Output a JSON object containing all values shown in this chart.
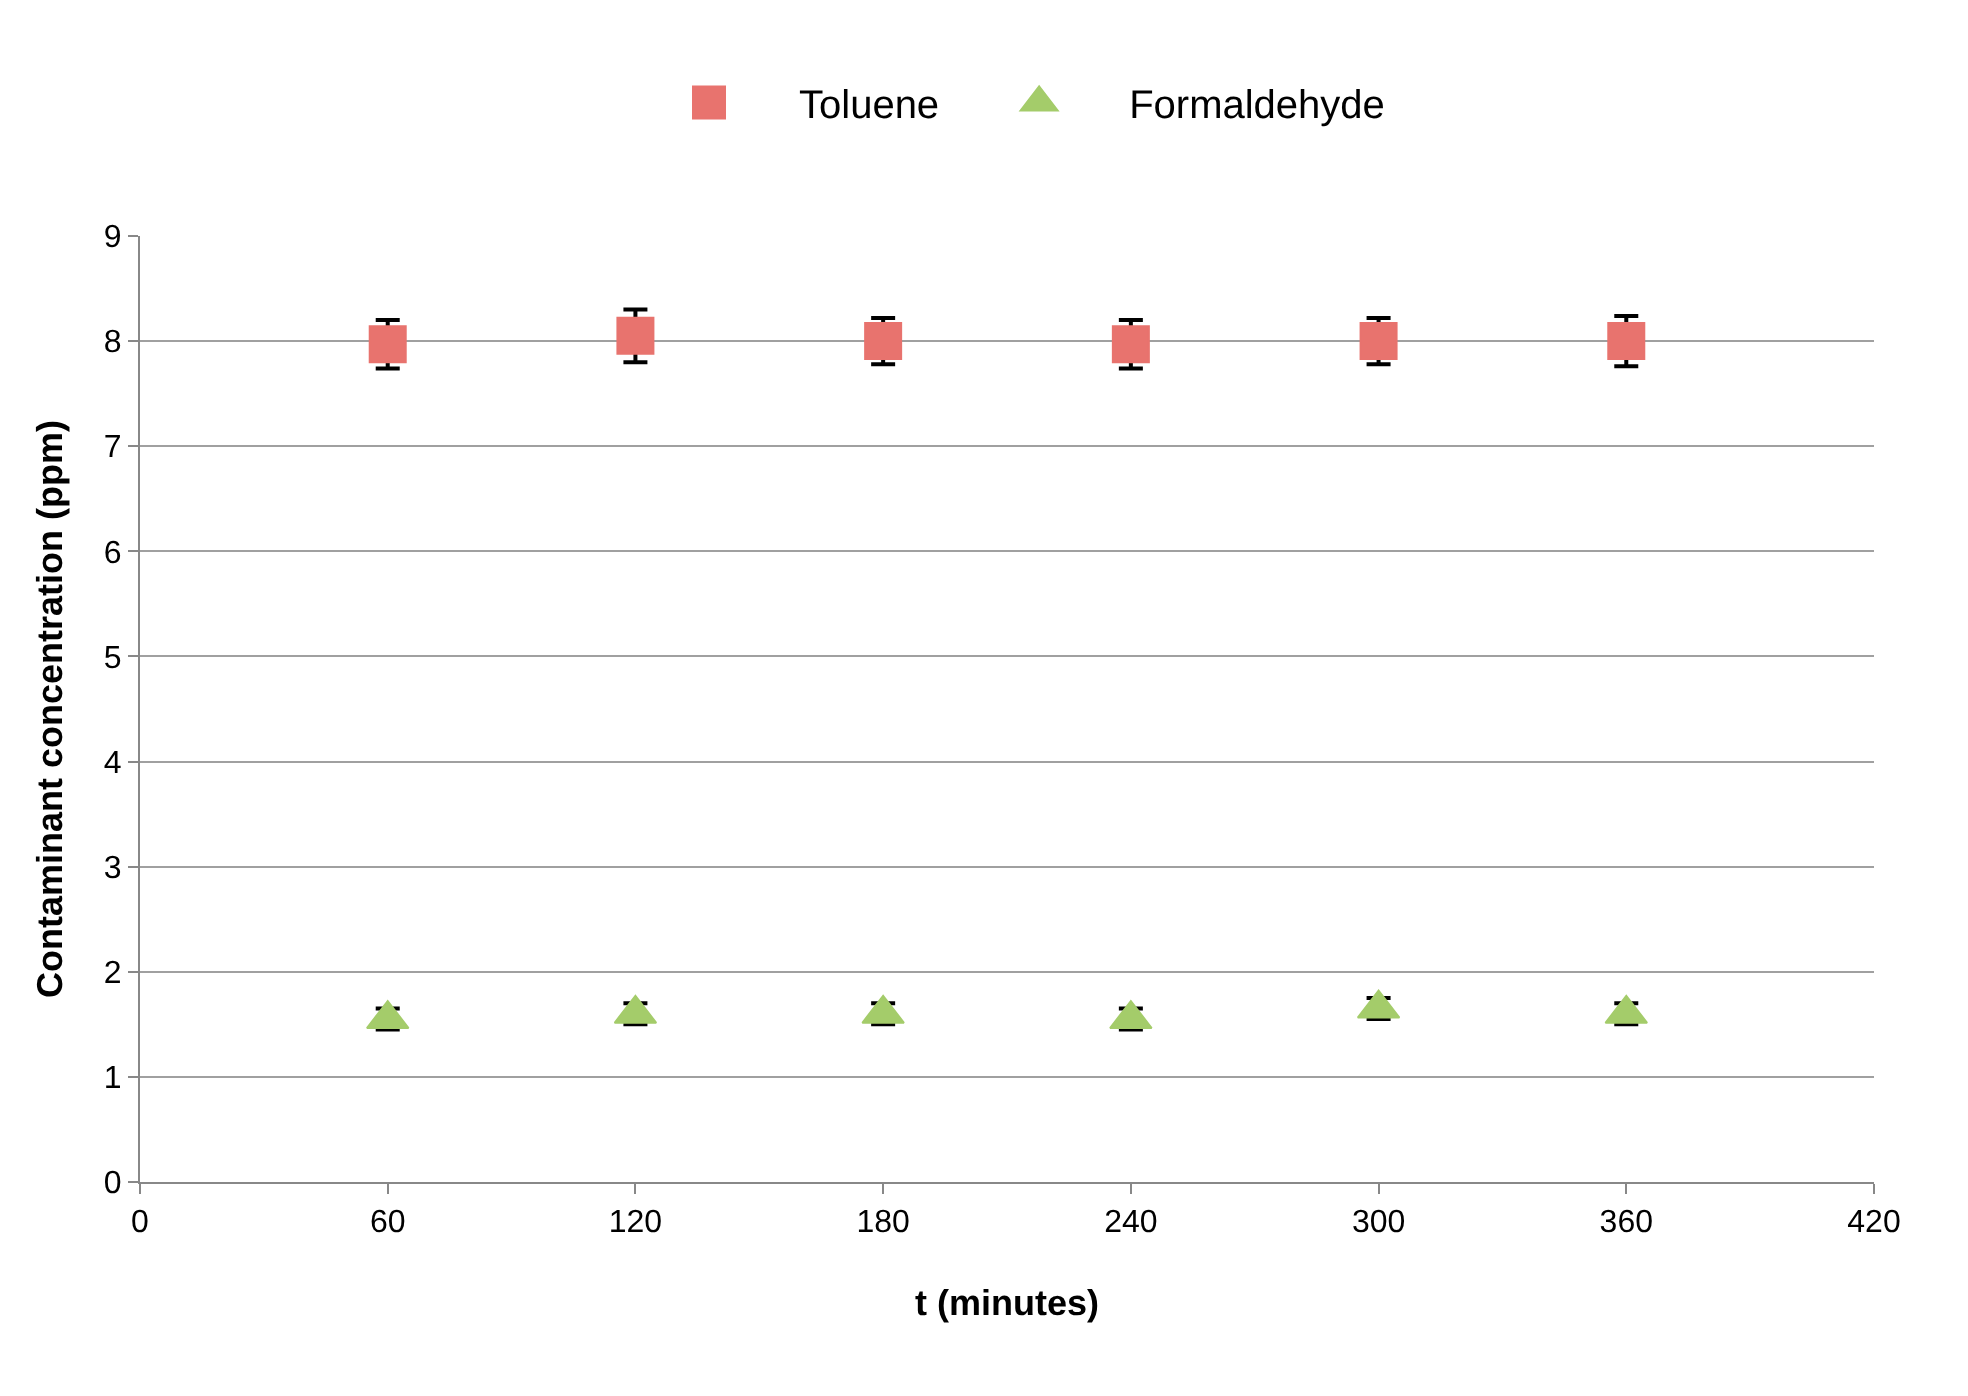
{
  "chart_data": {
    "type": "scatter",
    "xlabel": "t (minutes)",
    "ylabel": "Contaminant concentration (ppm)",
    "x": [
      60,
      120,
      180,
      240,
      300,
      360
    ],
    "series": [
      {
        "name": "Toluene",
        "color": "#e8736e",
        "marker": "square",
        "values": [
          7.97,
          8.05,
          8.0,
          7.97,
          8.0,
          8.0
        ],
        "errors": [
          0.23,
          0.25,
          0.22,
          0.23,
          0.22,
          0.24
        ]
      },
      {
        "name": "Formaldehyde",
        "color": "#a4cc6a",
        "marker": "triangle",
        "values": [
          1.55,
          1.6,
          1.6,
          1.55,
          1.65,
          1.6
        ],
        "errors": [
          0.1,
          0.1,
          0.1,
          0.1,
          0.1,
          0.1
        ]
      }
    ],
    "xlim": [
      0,
      420
    ],
    "xticks": [
      0,
      60,
      120,
      180,
      240,
      300,
      360,
      420
    ],
    "ylim": [
      0,
      9
    ],
    "yticks": [
      0,
      1,
      2,
      3,
      4,
      5,
      6,
      7,
      8,
      9
    ],
    "grid": "y",
    "legend": "top"
  }
}
